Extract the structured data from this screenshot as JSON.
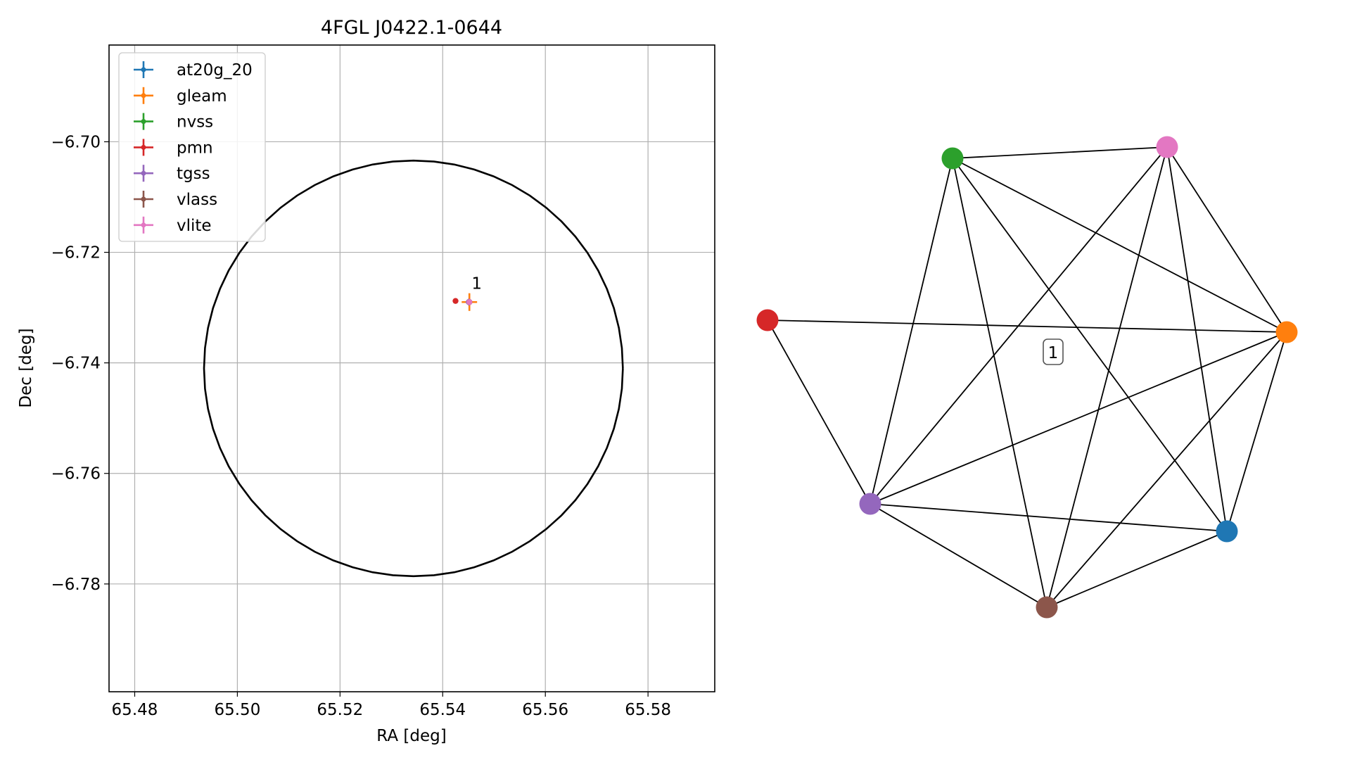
{
  "chart_data": [
    {
      "type": "scatter",
      "title": "4FGL J0422.1-0644",
      "xlabel": "RA [deg]",
      "ylabel": "Dec [deg]",
      "xlim": [
        65.475,
        65.593
      ],
      "ylim": [
        -6.7995,
        -6.6825
      ],
      "xticks": [
        65.48,
        65.5,
        65.52,
        65.54,
        65.56,
        65.58
      ],
      "xtick_labels": [
        "65.48",
        "65.50",
        "65.52",
        "65.54",
        "65.56",
        "65.58"
      ],
      "yticks": [
        -6.7,
        -6.72,
        -6.74,
        -6.76,
        -6.78
      ],
      "ytick_labels": [
        "−6.70",
        "−6.72",
        "−6.74",
        "−6.76",
        "−6.78"
      ],
      "grid": true,
      "legend_position": "top-left",
      "circle": {
        "center_ra": 65.5343,
        "center_dec": -6.741,
        "radius_dec": 0.0376,
        "color": "#000000"
      },
      "series": [
        {
          "name": "at20g_20",
          "color": "#1f77b4",
          "ra": 65.5452,
          "dec": -6.729,
          "ra_err": 0.0003,
          "dec_err": 0.0003
        },
        {
          "name": "gleam",
          "color": "#ff7f0e",
          "ra": 65.5452,
          "dec": -6.729,
          "ra_err": 0.0015,
          "dec_err": 0.0016
        },
        {
          "name": "nvss",
          "color": "#2ca02c",
          "ra": 65.5451,
          "dec": -6.729,
          "ra_err": 0.0003,
          "dec_err": 0.0003
        },
        {
          "name": "pmn",
          "color": "#d62728",
          "ra": 65.5425,
          "dec": -6.7288,
          "ra_err": 0.0002,
          "dec_err": 0.0002
        },
        {
          "name": "tgss",
          "color": "#9467bd",
          "ra": 65.5451,
          "dec": -6.729,
          "ra_err": 0.0006,
          "dec_err": 0.0006
        },
        {
          "name": "vlass",
          "color": "#8c564b",
          "ra": 65.5452,
          "dec": -6.729,
          "ra_err": 0.0002,
          "dec_err": 0.0002
        },
        {
          "name": "vlite",
          "color": "#e377c2",
          "ra": 65.5452,
          "dec": -6.729,
          "ra_err": 0.0003,
          "dec_err": 0.0004
        }
      ],
      "annotations": [
        {
          "text": "1",
          "ra": 65.5455,
          "dec": -6.727
        }
      ]
    },
    {
      "type": "network",
      "node_label": "1",
      "nodes": [
        {
          "id": "nvss",
          "color": "#2ca02c"
        },
        {
          "id": "vlite",
          "color": "#e377c2"
        },
        {
          "id": "pmn",
          "color": "#d62728"
        },
        {
          "id": "gleam",
          "color": "#ff7f0e"
        },
        {
          "id": "tgss",
          "color": "#9467bd"
        },
        {
          "id": "at20g_20",
          "color": "#1f77b4"
        },
        {
          "id": "vlass",
          "color": "#8c564b"
        }
      ],
      "edges": [
        [
          "nvss",
          "vlite"
        ],
        [
          "nvss",
          "gleam"
        ],
        [
          "nvss",
          "tgss"
        ],
        [
          "nvss",
          "at20g_20"
        ],
        [
          "nvss",
          "vlass"
        ],
        [
          "vlite",
          "gleam"
        ],
        [
          "vlite",
          "tgss"
        ],
        [
          "vlite",
          "at20g_20"
        ],
        [
          "vlite",
          "vlass"
        ],
        [
          "pmn",
          "gleam"
        ],
        [
          "pmn",
          "tgss"
        ],
        [
          "gleam",
          "tgss"
        ],
        [
          "gleam",
          "at20g_20"
        ],
        [
          "gleam",
          "vlass"
        ],
        [
          "tgss",
          "at20g_20"
        ],
        [
          "tgss",
          "vlass"
        ],
        [
          "at20g_20",
          "vlass"
        ]
      ]
    }
  ]
}
